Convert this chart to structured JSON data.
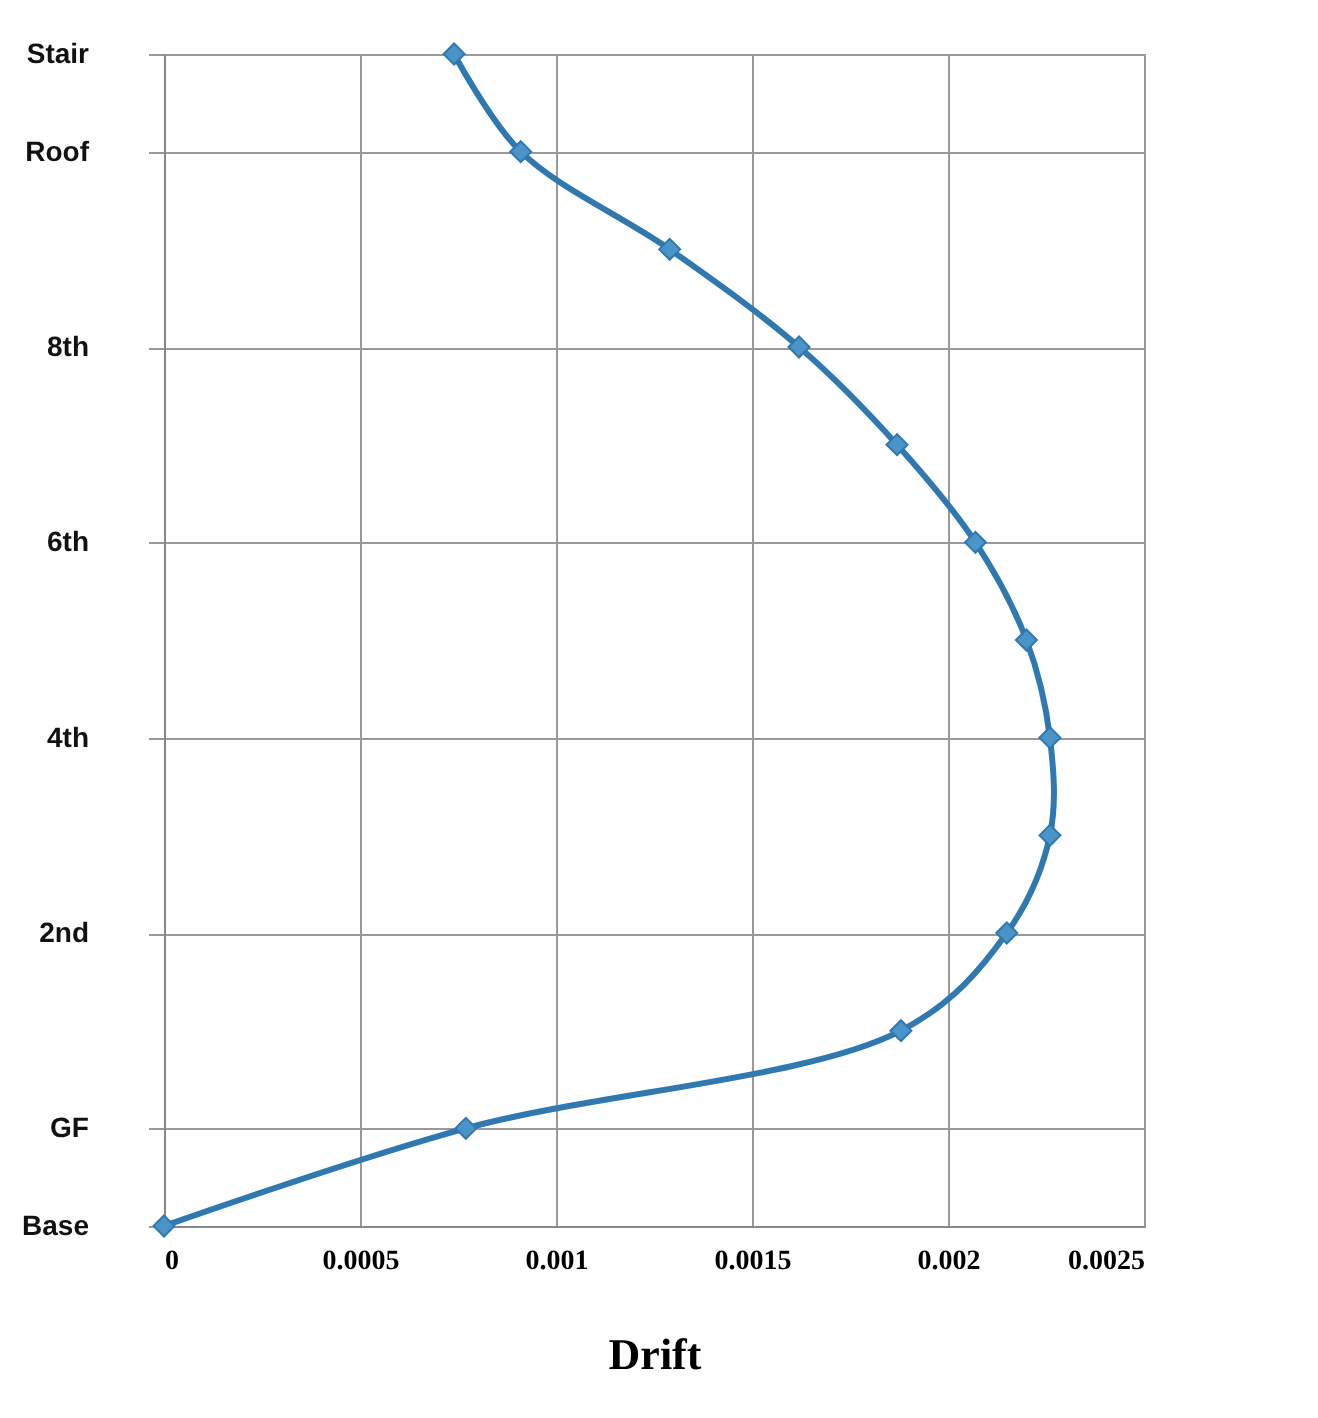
{
  "chart_data": {
    "type": "line",
    "orientation": "horizontal",
    "xlabel": "Drift",
    "categories": [
      "Stair",
      "Roof",
      null,
      "8th",
      null,
      "6th",
      null,
      "4th",
      null,
      "2nd",
      null,
      "GF",
      "Base"
    ],
    "series": [
      {
        "color": "#2f78b0",
        "values": [
          0.00074,
          0.00091,
          0.00129,
          0.00162,
          0.00187,
          0.00207,
          0.0022,
          0.00226,
          0.00226,
          0.00215,
          0.00188,
          0.00077,
          0
        ]
      }
    ],
    "xlim": [
      0,
      0.0025
    ],
    "xticks": [
      0,
      0.0005,
      0.001,
      0.0015,
      0.002,
      0.0025
    ],
    "grid": true,
    "marker": "diamond",
    "line_style": "solid"
  }
}
